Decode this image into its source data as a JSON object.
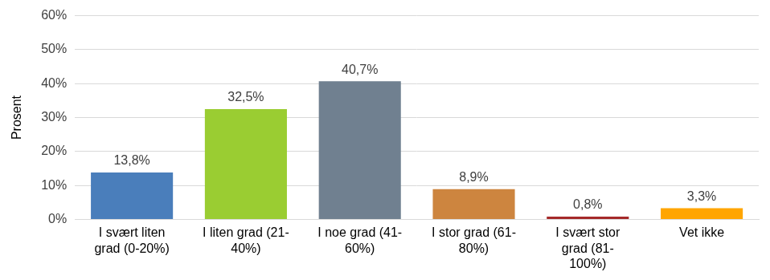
{
  "chart_data": {
    "type": "bar",
    "y_label": "Prosent",
    "categories": [
      "I svært liten grad (0-20%)",
      "I liten grad (21-40%)",
      "I noe grad (41-60%)",
      "I stor grad (61-80%)",
      "I svært stor grad (81-100%)",
      "Vet ikke"
    ],
    "values": [
      13.8,
      32.5,
      40.7,
      8.9,
      0.8,
      3.3
    ],
    "value_labels": [
      "13,8%",
      "32,5%",
      "40,7%",
      "8,9%",
      "0,8%",
      "3,3%"
    ],
    "colors": [
      "#4a7ebb",
      "#9acd32",
      "#708090",
      "#cd853f",
      "#a52a2a",
      "#ffa500"
    ],
    "ylim": [
      0,
      60
    ],
    "yticks": [
      {
        "value": 0,
        "label": "0%"
      },
      {
        "value": 10,
        "label": "10%"
      },
      {
        "value": 20,
        "label": "20%"
      },
      {
        "value": 30,
        "label": "30%"
      },
      {
        "value": 40,
        "label": "40%"
      },
      {
        "value": 50,
        "label": "50%"
      },
      {
        "value": 60,
        "label": "60%"
      }
    ],
    "grid": true,
    "data_labels": true
  }
}
